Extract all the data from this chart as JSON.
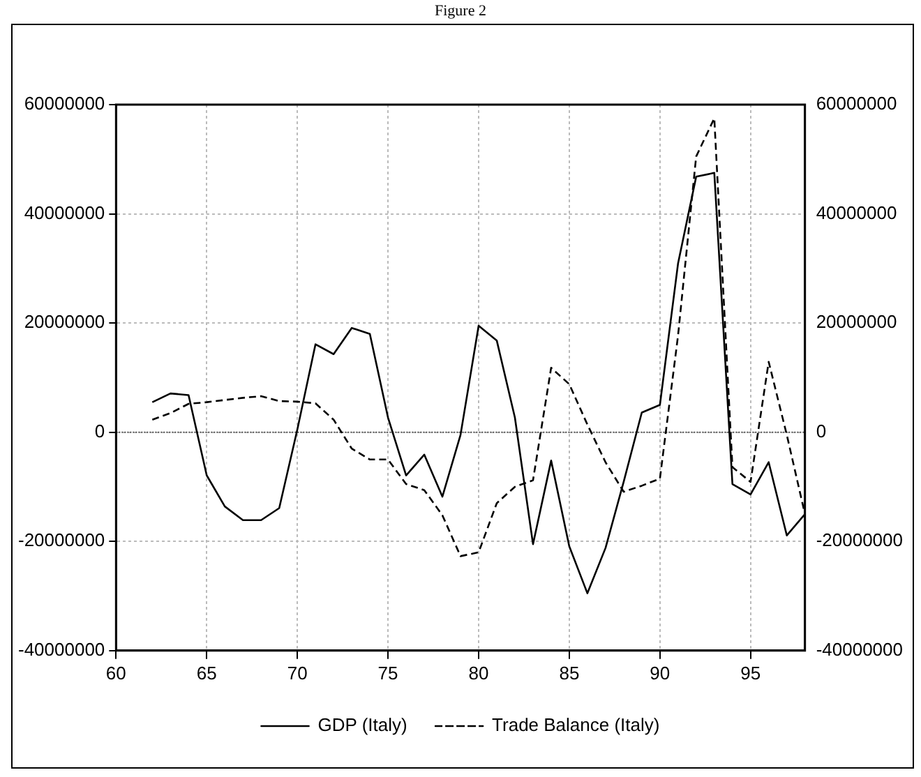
{
  "chart_data": {
    "type": "line",
    "title": "Figure 2",
    "x": [
      62,
      63,
      64,
      65,
      66,
      67,
      68,
      69,
      70,
      71,
      72,
      73,
      74,
      75,
      76,
      77,
      78,
      79,
      80,
      81,
      82,
      83,
      84,
      85,
      86,
      87,
      88,
      89,
      90,
      91,
      92,
      93,
      94,
      95,
      96,
      97,
      98
    ],
    "series": [
      {
        "name": "GDP (Italy)",
        "color": "#000000",
        "line_style": "solid",
        "values": [
          5500000,
          7100000,
          6800000,
          -7900000,
          -13600000,
          -16100000,
          -16100000,
          -13900000,
          500000,
          16100000,
          14300000,
          19100000,
          18000000,
          2700000,
          -7900000,
          -4100000,
          -11800000,
          -500000,
          19500000,
          16800000,
          2700000,
          -20500000,
          -5200000,
          -20900000,
          -29500000,
          -21200000,
          -9100000,
          3600000,
          5000000,
          30900000,
          46800000,
          47500000,
          -9500000,
          -11400000,
          -5500000,
          -18900000,
          -15000000
        ]
      },
      {
        "name": "Trade Balance (Italy)",
        "color": "#000000",
        "line_style": "dashed",
        "values": [
          2300000,
          3500000,
          5200000,
          5500000,
          5900000,
          6300000,
          6600000,
          5700000,
          5600000,
          5300000,
          2300000,
          -3000000,
          -5000000,
          -5000000,
          -9500000,
          -10600000,
          -15200000,
          -22700000,
          -22000000,
          -13000000,
          -10000000,
          -8800000,
          11800000,
          8800000,
          1400000,
          -5500000,
          -10900000,
          -9800000,
          -8500000,
          17700000,
          50500000,
          57500000,
          -6400000,
          -9100000,
          12900000,
          -500000,
          -15000000
        ]
      }
    ],
    "xlim": [
      60,
      98
    ],
    "xticks": [
      60,
      65,
      70,
      75,
      80,
      85,
      90,
      95
    ],
    "ylim": [
      -40000000,
      60000000
    ],
    "yticks": [
      -40000000,
      -20000000,
      0,
      20000000,
      40000000,
      60000000
    ],
    "y2lim": [
      -40000000,
      60000000
    ],
    "y2ticks": [
      -40000000,
      -20000000,
      0,
      20000000,
      40000000,
      60000000
    ],
    "ref_lines": [
      {
        "axis": "y",
        "value": 0,
        "color": "#555555",
        "line_style": "dotted"
      }
    ],
    "grid": true,
    "legend": "bottom",
    "marker": "none"
  }
}
